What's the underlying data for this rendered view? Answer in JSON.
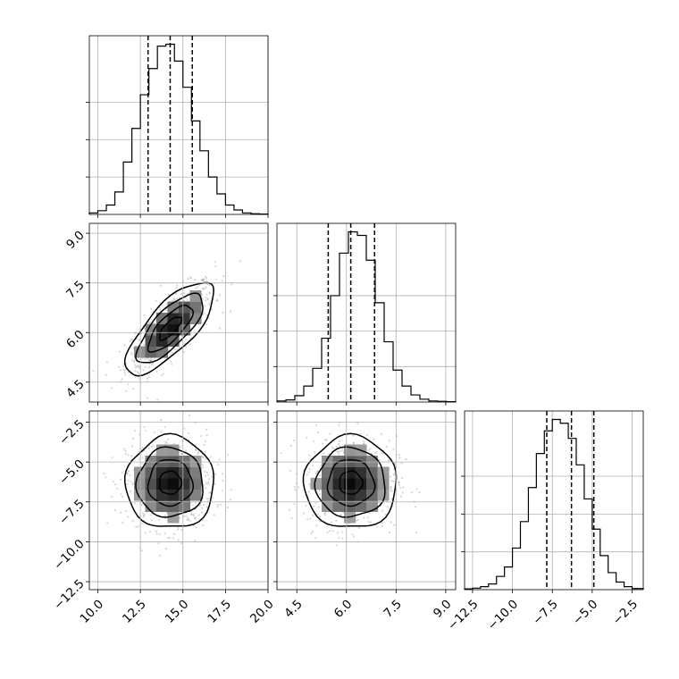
{
  "chart_data": [
    {
      "type": "histogram",
      "panel": "p0-0",
      "parameter": 0,
      "xlim": [
        9.5,
        20.0
      ],
      "bins": [
        9.5,
        10.0,
        10.5,
        11.0,
        11.5,
        12.0,
        12.5,
        13.0,
        13.5,
        14.0,
        14.5,
        15.0,
        15.5,
        16.0,
        16.5,
        17.0,
        17.5,
        18.0,
        18.5,
        19.0,
        19.5,
        20.0
      ],
      "counts": [
        4,
        10,
        25,
        60,
        140,
        230,
        320,
        390,
        450,
        455,
        410,
        340,
        250,
        170,
        100,
        55,
        25,
        12,
        4,
        2,
        1
      ],
      "quantiles": [
        12.95,
        14.25,
        15.55
      ],
      "yticks": [
        100,
        200,
        300
      ]
    },
    {
      "type": "scatter",
      "panel": "p1-0",
      "xparam": 0,
      "yparam": 1,
      "xlim": [
        9.5,
        20.0
      ],
      "ylim": [
        3.9,
        9.3
      ],
      "mean": [
        14.25,
        6.13
      ],
      "sd": [
        1.3,
        0.7
      ],
      "corr": 0.75,
      "contour_levels_sigma": [
        0.5,
        1.0,
        1.5,
        2.0
      ],
      "yticks": [
        4.5,
        6.0,
        7.5,
        9.0
      ],
      "ytick_labels": [
        "4.5",
        "6.0",
        "7.5",
        "9.0"
      ]
    },
    {
      "type": "histogram",
      "panel": "p1-1",
      "parameter": 1,
      "xlim": [
        3.9,
        9.3
      ],
      "bins": [
        3.9,
        4.17,
        4.44,
        4.71,
        4.98,
        5.25,
        5.52,
        5.79,
        6.06,
        6.33,
        6.6,
        6.87,
        7.14,
        7.41,
        7.68,
        7.95,
        8.22,
        8.49,
        8.76,
        9.03,
        9.3
      ],
      "counts": [
        3,
        6,
        18,
        45,
        95,
        180,
        300,
        420,
        480,
        470,
        400,
        280,
        170,
        90,
        45,
        20,
        8,
        3,
        2,
        1
      ],
      "quantiles": [
        5.45,
        6.13,
        6.85
      ],
      "yticks": [
        100,
        200,
        300
      ]
    },
    {
      "type": "scatter",
      "panel": "p2-0",
      "xparam": 0,
      "yparam": 2,
      "xlim": [
        9.5,
        20.0
      ],
      "ylim": [
        -13.0,
        -1.8
      ],
      "mean": [
        14.25,
        -6.3
      ],
      "sd": [
        1.3,
        1.45
      ],
      "corr": 0.0,
      "contour_levels_sigma": [
        0.5,
        1.0,
        1.5,
        2.0
      ],
      "xticks": [
        10.0,
        12.5,
        15.0,
        17.5,
        20.0
      ],
      "xtick_labels": [
        "10.0",
        "12.5",
        "15.0",
        "17.5",
        "20.0"
      ],
      "yticks": [
        -12.5,
        -10.0,
        -7.5,
        -5.0,
        -2.5
      ],
      "ytick_labels": [
        "−12.5",
        "−10.0",
        "−7.5",
        "−5.0",
        "−2.5"
      ]
    },
    {
      "type": "scatter",
      "panel": "p2-1",
      "xparam": 1,
      "yparam": 2,
      "xlim": [
        3.9,
        9.3
      ],
      "ylim": [
        -13.0,
        -1.8
      ],
      "mean": [
        6.13,
        -6.3
      ],
      "sd": [
        0.7,
        1.45
      ],
      "corr": 0.0,
      "contour_levels_sigma": [
        0.5,
        1.0,
        1.5,
        2.0
      ],
      "xticks": [
        4.5,
        6.0,
        7.5,
        9.0
      ],
      "xtick_labels": [
        "4.5",
        "6.0",
        "7.5",
        "9.0"
      ]
    },
    {
      "type": "histogram",
      "panel": "p2-2",
      "parameter": 2,
      "xlim": [
        -13.0,
        -1.8
      ],
      "bins": [
        -13.0,
        -12.5,
        -12.0,
        -11.5,
        -11.0,
        -10.5,
        -10.0,
        -9.5,
        -9.0,
        -8.5,
        -8.0,
        -7.5,
        -7.0,
        -6.5,
        -6.0,
        -5.5,
        -5.0,
        -4.5,
        -4.0,
        -3.5,
        -3.0,
        -2.5,
        -1.8
      ],
      "counts": [
        2,
        4,
        8,
        15,
        35,
        60,
        110,
        180,
        270,
        360,
        420,
        450,
        440,
        400,
        330,
        240,
        160,
        90,
        45,
        20,
        8,
        3
      ],
      "quantiles": [
        -7.85,
        -6.3,
        -4.9
      ],
      "yticks": [
        100,
        200,
        300
      ],
      "xticks": [
        -12.5,
        -10.0,
        -7.5,
        -5.0,
        -2.5
      ],
      "xtick_labels": [
        "−12.5",
        "−10.0",
        "−7.5",
        "−5.0",
        "−2.5"
      ]
    }
  ]
}
